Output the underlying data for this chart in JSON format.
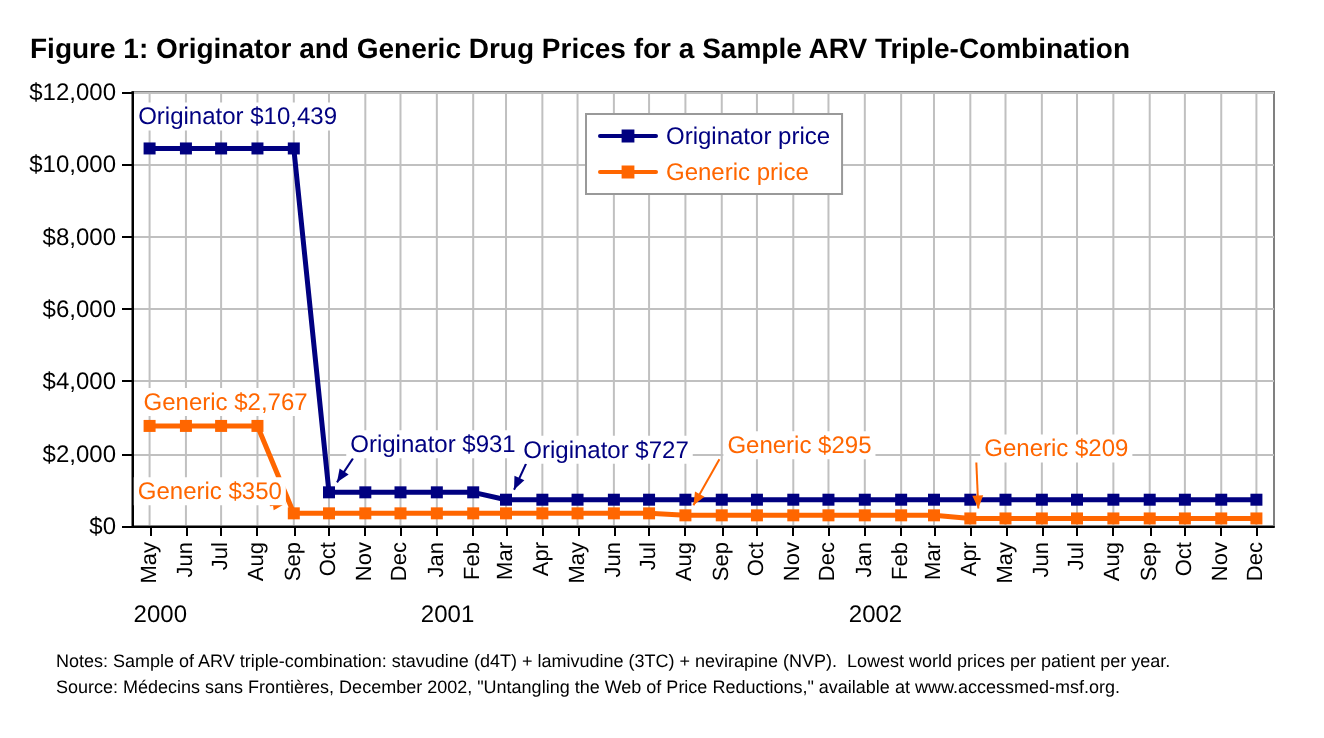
{
  "chart_data": {
    "type": "line",
    "title": "Figure 1: Originator and Generic Drug Prices for a Sample ARV Triple-Combination",
    "x": [
      "2000-05",
      "2000-06",
      "2000-07",
      "2000-08",
      "2000-09",
      "2000-10",
      "2000-11",
      "2000-12",
      "2001-01",
      "2001-02",
      "2001-03",
      "2001-04",
      "2001-05",
      "2001-06",
      "2001-07",
      "2001-08",
      "2001-09",
      "2001-10",
      "2001-11",
      "2001-12",
      "2002-01",
      "2002-02",
      "2002-03",
      "2002-04",
      "2002-05",
      "2002-06",
      "2002-07",
      "2002-08",
      "2002-09",
      "2002-10",
      "2002-11",
      "2002-12"
    ],
    "series": [
      {
        "name": "Originator price",
        "color": "#000080",
        "values": [
          10439,
          10439,
          10439,
          10439,
          10439,
          931,
          931,
          931,
          931,
          931,
          727,
          727,
          727,
          727,
          727,
          727,
          727,
          727,
          727,
          727,
          727,
          727,
          727,
          727,
          727,
          727,
          727,
          727,
          727,
          727,
          727,
          727
        ]
      },
      {
        "name": "Generic price",
        "color": "#ff6600",
        "values": [
          2767,
          2767,
          2767,
          2767,
          350,
          350,
          350,
          350,
          350,
          350,
          350,
          350,
          350,
          350,
          350,
          295,
          295,
          295,
          295,
          295,
          295,
          295,
          295,
          209,
          209,
          209,
          209,
          209,
          209,
          209,
          209,
          209
        ]
      }
    ],
    "xlim": [
      "2000-04-16",
      "2002-12-16"
    ],
    "xticks": [
      {
        "value": "2000-05",
        "label": "May"
      },
      {
        "value": "2000-06",
        "label": "Jun"
      },
      {
        "value": "2000-07",
        "label": "Jul"
      },
      {
        "value": "2000-08",
        "label": "Aug"
      },
      {
        "value": "2000-09",
        "label": "Sep"
      },
      {
        "value": "2000-10",
        "label": "Oct"
      },
      {
        "value": "2000-11",
        "label": "Nov"
      },
      {
        "value": "2000-12",
        "label": "Dec"
      },
      {
        "value": "2001-01",
        "label": "Jan"
      },
      {
        "value": "2001-02",
        "label": "Feb"
      },
      {
        "value": "2001-03",
        "label": "Mar"
      },
      {
        "value": "2001-04",
        "label": "Apr"
      },
      {
        "value": "2001-05",
        "label": "May"
      },
      {
        "value": "2001-06",
        "label": "Jun"
      },
      {
        "value": "2001-07",
        "label": "Jul"
      },
      {
        "value": "2001-08",
        "label": "Aug"
      },
      {
        "value": "2001-09",
        "label": "Sep"
      },
      {
        "value": "2001-10",
        "label": "Oct"
      },
      {
        "value": "2001-11",
        "label": "Nov"
      },
      {
        "value": "2001-12",
        "label": "Dec"
      },
      {
        "value": "2002-01",
        "label": "Jan"
      },
      {
        "value": "2002-02",
        "label": "Feb"
      },
      {
        "value": "2002-03",
        "label": "Mar"
      },
      {
        "value": "2002-04",
        "label": "Apr"
      },
      {
        "value": "2002-05",
        "label": "May"
      },
      {
        "value": "2002-06",
        "label": "Jun"
      },
      {
        "value": "2002-07",
        "label": "Jul"
      },
      {
        "value": "2002-08",
        "label": "Aug"
      },
      {
        "value": "2002-09",
        "label": "Sep"
      },
      {
        "value": "2002-10",
        "label": "Oct"
      },
      {
        "value": "2002-11",
        "label": "Nov"
      },
      {
        "value": "2002-12",
        "label": "Dec"
      }
    ],
    "ylim": [
      0,
      12000
    ],
    "yticks": [
      {
        "value": 0,
        "label": "$0"
      },
      {
        "value": 2000,
        "label": "$2,000"
      },
      {
        "value": 4000,
        "label": "$4,000"
      },
      {
        "value": 6000,
        "label": "$6,000"
      },
      {
        "value": 8000,
        "label": "$8,000"
      },
      {
        "value": 10000,
        "label": "$10,000"
      },
      {
        "value": 12000,
        "label": "$12,000"
      }
    ],
    "grid": true,
    "legend": "top",
    "marker": "square",
    "line_style": "solid",
    "annotations": [
      "2000",
      "2001",
      "2002",
      {
        "text": "Originator $10,439",
        "x": "2000-05",
        "y": 10439
      },
      {
        "text": "Generic $2,767",
        "x": "2000-05",
        "y": 2767
      },
      {
        "text": "Generic $350",
        "x": "2000-09",
        "y": 350
      },
      {
        "text": "Originator $931",
        "x": "2000-10",
        "y": 931
      },
      {
        "text": "Originator $727",
        "x": "2001-03",
        "y": 727
      },
      {
        "text": "Generic $295",
        "x": "2001-08",
        "y": 295
      },
      {
        "text": "Generic $209",
        "x": "2002-04",
        "y": 209
      },
      "Notes: Sample of ARV triple-combination: stavudine (d4T) + lamivudine (3TC) + nevirapine (NVP).  Lowest world prices per patient per year.",
      "Source: Médecins sans Frontières, December 2002, \"Untangling the Web of Price Reductions,\" available at www.accessmed-msf.org."
    ]
  }
}
